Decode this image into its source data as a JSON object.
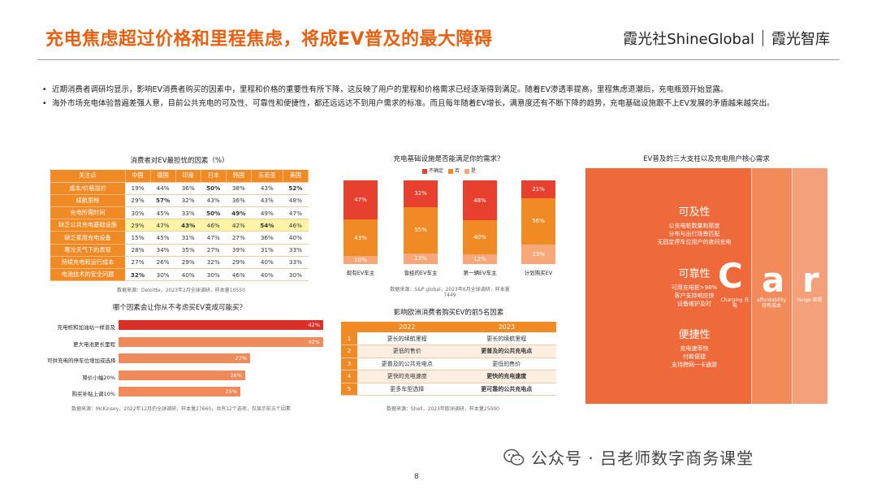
{
  "header": {
    "title": "充电焦虑超过价格和里程焦虑，将成EV普及的最大障碍",
    "brand_left": "霞光社ShineGlobal",
    "brand_right": "霞光智库"
  },
  "bullets": [
    "近期消费者调研均显示，影响EV消费者购买的因素中，里程和价格的重要性有所下降，这反映了用户的里程和价格需求已经逐渐得到满足。随着EV渗透率提高，里程焦虑退潮后，充电瓶颈开始显露。",
    "海外市场充电体验普遍差强人意，目前公共充电的可及性、可靠性和便捷性，都还远远达不到用户需求的标准。而且每年随着EV增长，满意度还有不断下降的趋势，充电基础设施跟不上EV发展的矛盾越来越突出。"
  ],
  "table1": {
    "title": "消费者对EV最担忧的因素（%）",
    "columns": [
      "关注点",
      "中国",
      "德国",
      "印度",
      "日本",
      "韩国",
      "东南亚",
      "美国"
    ],
    "rows": [
      {
        "label": "成本/价格溢价",
        "values": [
          "19%",
          "44%",
          "36%",
          "50%",
          "38%",
          "43%",
          "52%"
        ],
        "bold": [
          false,
          false,
          false,
          true,
          false,
          false,
          true
        ],
        "hl": [
          false,
          false,
          false,
          false,
          false,
          false,
          false
        ]
      },
      {
        "label": "续航里程",
        "values": [
          "29%",
          "57%",
          "32%",
          "43%",
          "36%",
          "43%",
          "48%"
        ],
        "bold": [
          false,
          true,
          false,
          false,
          false,
          false,
          false
        ],
        "hl": [
          false,
          false,
          false,
          false,
          false,
          false,
          false
        ]
      },
      {
        "label": "充电所需时间",
        "values": [
          "30%",
          "45%",
          "33%",
          "50%",
          "49%",
          "49%",
          "47%"
        ],
        "bold": [
          false,
          false,
          false,
          true,
          true,
          false,
          false
        ],
        "hl": [
          false,
          false,
          false,
          false,
          false,
          false,
          false
        ]
      },
      {
        "label": "缺乏公共充电基础设施",
        "values": [
          "29%",
          "47%",
          "43%",
          "46%",
          "42%",
          "54%",
          "46%"
        ],
        "bold": [
          false,
          false,
          true,
          false,
          false,
          true,
          false
        ],
        "hl": [
          true,
          true,
          true,
          true,
          true,
          true,
          true
        ]
      },
      {
        "label": "缺乏家用充电设备",
        "values": [
          "15%",
          "45%",
          "31%",
          "47%",
          "27%",
          "36%",
          "40%"
        ],
        "bold": [
          false,
          false,
          false,
          false,
          false,
          false,
          false
        ],
        "hl": [
          false,
          false,
          false,
          false,
          false,
          false,
          false
        ]
      },
      {
        "label": "寒冷天气下的表现",
        "values": [
          "28%",
          "34%",
          "35%",
          "27%",
          "39%",
          "31%",
          "33%"
        ],
        "bold": [
          false,
          false,
          false,
          false,
          false,
          false,
          false
        ],
        "hl": [
          false,
          false,
          false,
          false,
          false,
          false,
          false
        ]
      },
      {
        "label": "持续充电和运行成本",
        "values": [
          "27%",
          "26%",
          "29%",
          "32%",
          "29%",
          "40%",
          "33%"
        ],
        "bold": [
          false,
          false,
          false,
          false,
          false,
          false,
          false
        ],
        "hl": [
          false,
          false,
          false,
          false,
          false,
          false,
          false
        ]
      },
      {
        "label": "电池技术的安全问题",
        "values": [
          "32%",
          "30%",
          "40%",
          "30%",
          "46%",
          "40%",
          "30%"
        ],
        "bold": [
          true,
          false,
          false,
          false,
          false,
          false,
          false
        ],
        "hl": [
          false,
          false,
          false,
          false,
          false,
          false,
          false
        ]
      }
    ],
    "source": "数据来源：Deloitte，2023年2月全球调研，样本量10550"
  },
  "hbar": {
    "title": "哪个因素会让你从不考虑买EV变成可能买？",
    "items": [
      {
        "label": "充电桩和加油站一样普及",
        "value": "42%",
        "pct": 42,
        "dark": true
      },
      {
        "label": "更大电池更长里程",
        "value": "42%",
        "pct": 42,
        "dark": false
      },
      {
        "label": "可供充电的停车位增加或选择",
        "value": "27%",
        "pct": 27,
        "dark": false
      },
      {
        "label": "降价小幅20%",
        "value": "26%",
        "pct": 26,
        "dark": false
      },
      {
        "label": "购买补贴上调10%",
        "value": "25%",
        "pct": 25,
        "dark": false
      }
    ],
    "source": "数据来源：McKinsey，2022年12月的全球调研，样本量27660，共有12个选项，仅显示前五个因素"
  },
  "chart_data": {
    "type": "bar",
    "title": "充电基础设施是否能满足你的需求？",
    "categories": [
      "现有EV车主",
      "曾经的EV车主",
      "第一辆EV车主",
      "计划购买EV"
    ],
    "series": [
      {
        "name": "是",
        "values": [
          10,
          13,
          12,
          23
        ]
      },
      {
        "name": "否",
        "values": [
          43,
          55,
          40,
          56
        ]
      },
      {
        "name": "不确定",
        "values": [
          47,
          32,
          48,
          21
        ]
      }
    ],
    "ylim": [
      0,
      100
    ],
    "source": "数据来源：S&P global，2023年6月全球调研，样本量7449"
  },
  "colors": {
    "orange": "#ef8a24",
    "red": "#e8402f",
    "title": "#e8600f",
    "car": "#ef6a3a"
  },
  "table2": {
    "title": "影响欧洲消费者购买EV的前5名因素",
    "col_a": "2022",
    "col_b": "2023",
    "rows": [
      {
        "n": "1",
        "a": "更长的续航里程",
        "b": "更长的续航里程",
        "bold_b": false
      },
      {
        "n": "2",
        "a": "更低的售价",
        "b": "更普及的公共充电点",
        "bold_b": true
      },
      {
        "n": "3",
        "a": "更普及的公共充电点",
        "b": "更低的售价",
        "bold_b": false
      },
      {
        "n": "4",
        "a": "更快的充电速度",
        "b": "更快的充电速度",
        "bold_b": true
      },
      {
        "n": "5",
        "a": "更多车型选择",
        "b": "更可靠的公共充电点",
        "bold_b": true
      }
    ],
    "source": "数据来源：Shell，2023年欧洲调研，样本量25000"
  },
  "car": {
    "title": "EV普及的三大支柱以及充电用户核心需求",
    "pillars": [
      {
        "h": "可及性",
        "s": [
          "公充电桩数量和密度",
          "分布与出行场景匹配",
          "无固定停车位用户的夜间充电"
        ]
      },
      {
        "h": "可靠性",
        "s": [
          "可用充电桩>98%",
          "客户支持响应快",
          "设备维护及时"
        ]
      },
      {
        "h": "便捷性",
        "s": [
          "充电速率快",
          "付款便捷",
          "支持跨网一卡通游"
        ]
      }
    ],
    "letters": [
      {
        "l": "C",
        "sub": "Charging 充电"
      },
      {
        "l": "a",
        "sub": "affordability 持有成本"
      },
      {
        "l": "r",
        "sub": "range 续程"
      }
    ]
  },
  "watermark": "公众号 · 吕老师数字商务课堂",
  "page_number": "8"
}
